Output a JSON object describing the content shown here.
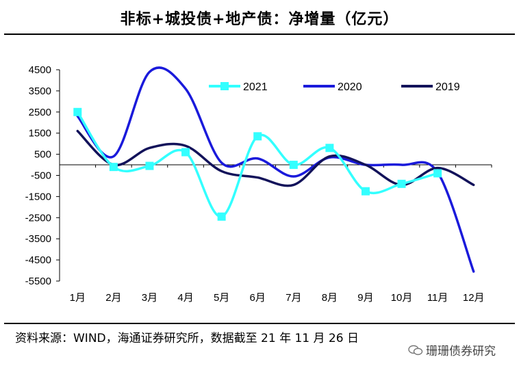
{
  "title": "非标+城投债+地产债：净增量（亿元）",
  "source": "资料来源：WIND，海通证券研究所，数据截至 21 年 11 月 26 日",
  "watermark": "珊珊债券研究",
  "chart_data": {
    "type": "line",
    "title": "非标+城投债+地产债：净增量（亿元）",
    "xlabel": "",
    "ylabel": "",
    "categories": [
      "1月",
      "2月",
      "3月",
      "4月",
      "5月",
      "6月",
      "7月",
      "8月",
      "9月",
      "10月",
      "11月",
      "12月"
    ],
    "yticks": [
      4500,
      3500,
      2500,
      1500,
      500,
      -500,
      -1500,
      -2500,
      -3500,
      -4500,
      -5500
    ],
    "ytick_labels": [
      "4500",
      "3500",
      "2500",
      "1500",
      "500",
      "-500",
      "-1500",
      "-2500",
      "-3500",
      "-4500",
      "-5500"
    ],
    "ylim": [
      -5500,
      4500
    ],
    "legend_position": "top-right",
    "series": [
      {
        "name": "2021",
        "color": "#33ffff",
        "marker": "square",
        "values": [
          2500,
          -100,
          -50,
          600,
          -2450,
          1350,
          0,
          800,
          -1250,
          -900,
          -400,
          null
        ]
      },
      {
        "name": "2020",
        "color": "#1a1adb",
        "marker": "none",
        "values": [
          2300,
          400,
          4400,
          3600,
          100,
          300,
          -550,
          350,
          0,
          0,
          -350,
          -5050
        ]
      },
      {
        "name": "2019",
        "color": "#12125a",
        "marker": "none",
        "values": [
          1600,
          0,
          800,
          900,
          -300,
          -600,
          -950,
          400,
          0,
          -950,
          -150,
          -950
        ]
      }
    ]
  }
}
